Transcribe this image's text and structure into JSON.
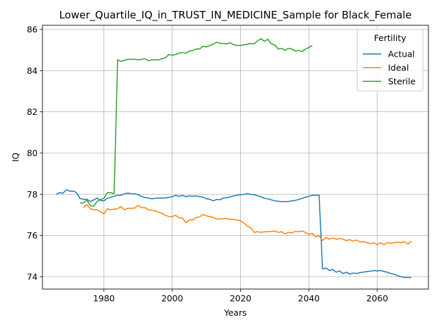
{
  "chart_data": {
    "type": "line",
    "title": "Lower_Quartile_IQ_in_TRUST_IN_MEDICINE_Sample for Black_Female",
    "xlabel": "Years",
    "ylabel": "IQ",
    "xlim": [
      1962,
      2075
    ],
    "ylim": [
      73.4,
      86.2
    ],
    "xticks": [
      1980,
      2000,
      2020,
      2040,
      2060
    ],
    "yticks": [
      74,
      76,
      78,
      80,
      82,
      84,
      86
    ],
    "grid": true,
    "legend": {
      "title": "Fertility",
      "position": "top-right"
    },
    "series": [
      {
        "name": "Actual",
        "color": "#1f77b4",
        "points": [
          [
            1966,
            78.0
          ],
          [
            1967,
            78.08
          ],
          [
            1968,
            78.05
          ],
          [
            1969,
            78.22
          ],
          [
            1970,
            78.15
          ],
          [
            1971,
            78.16
          ],
          [
            1972,
            78.08
          ],
          [
            1973,
            77.8
          ],
          [
            1974,
            77.75
          ],
          [
            1975,
            77.76
          ],
          [
            1976,
            77.65
          ],
          [
            1977,
            77.72
          ],
          [
            1978,
            77.82
          ],
          [
            1979,
            77.7
          ],
          [
            1980,
            77.68
          ],
          [
            1981,
            77.8
          ],
          [
            1982,
            77.85
          ],
          [
            1983,
            77.9
          ],
          [
            1984,
            77.95
          ],
          [
            1985,
            77.95
          ],
          [
            1986,
            78.02
          ],
          [
            1987,
            78.06
          ],
          [
            1988,
            78.02
          ],
          [
            1989,
            78.02
          ],
          [
            1990,
            77.98
          ],
          [
            1991,
            77.9
          ],
          [
            1992,
            77.84
          ],
          [
            1993,
            77.82
          ],
          [
            1994,
            77.78
          ],
          [
            1995,
            77.8
          ],
          [
            1996,
            77.82
          ],
          [
            1997,
            77.82
          ],
          [
            1998,
            77.82
          ],
          [
            1999,
            77.85
          ],
          [
            2000,
            77.88
          ],
          [
            2001,
            77.95
          ],
          [
            2002,
            77.9
          ],
          [
            2003,
            77.95
          ],
          [
            2004,
            77.88
          ],
          [
            2005,
            77.92
          ],
          [
            2006,
            77.9
          ],
          [
            2007,
            77.92
          ],
          [
            2008,
            77.88
          ],
          [
            2009,
            77.86
          ],
          [
            2010,
            77.78
          ],
          [
            2011,
            77.76
          ],
          [
            2012,
            77.68
          ],
          [
            2013,
            77.75
          ],
          [
            2014,
            77.73
          ],
          [
            2015,
            77.82
          ],
          [
            2016,
            77.83
          ],
          [
            2017,
            77.88
          ],
          [
            2018,
            77.92
          ],
          [
            2019,
            77.95
          ],
          [
            2020,
            77.98
          ],
          [
            2021,
            77.99
          ],
          [
            2022,
            78.03
          ],
          [
            2023,
            77.99
          ],
          [
            2024,
            77.98
          ],
          [
            2025,
            77.92
          ],
          [
            2026,
            77.88
          ],
          [
            2027,
            77.8
          ],
          [
            2028,
            77.78
          ],
          [
            2029,
            77.73
          ],
          [
            2030,
            77.68
          ],
          [
            2031,
            77.66
          ],
          [
            2032,
            77.64
          ],
          [
            2033,
            77.64
          ],
          [
            2034,
            77.65
          ],
          [
            2035,
            77.68
          ],
          [
            2036,
            77.7
          ],
          [
            2037,
            77.75
          ],
          [
            2038,
            77.8
          ],
          [
            2039,
            77.86
          ],
          [
            2040,
            77.9
          ],
          [
            2041,
            77.95
          ],
          [
            2042,
            77.95
          ],
          [
            2043,
            77.95
          ],
          [
            2044,
            74.38
          ],
          [
            2045,
            74.42
          ],
          [
            2046,
            74.3
          ],
          [
            2047,
            74.35
          ],
          [
            2048,
            74.22
          ],
          [
            2049,
            74.28
          ],
          [
            2050,
            74.15
          ],
          [
            2051,
            74.22
          ],
          [
            2052,
            74.12
          ],
          [
            2053,
            74.18
          ],
          [
            2054,
            74.15
          ],
          [
            2055,
            74.2
          ],
          [
            2056,
            74.22
          ],
          [
            2057,
            74.25
          ],
          [
            2058,
            74.26
          ],
          [
            2059,
            74.3
          ],
          [
            2060,
            74.28
          ],
          [
            2061,
            74.3
          ],
          [
            2062,
            74.25
          ],
          [
            2063,
            74.22
          ],
          [
            2064,
            74.15
          ],
          [
            2065,
            74.12
          ],
          [
            2066,
            74.05
          ],
          [
            2067,
            74.0
          ],
          [
            2068,
            73.96
          ],
          [
            2069,
            73.97
          ],
          [
            2070,
            73.95
          ]
        ]
      },
      {
        "name": "Ideal",
        "color": "#ff7f0e",
        "points": [
          [
            1974,
            77.35
          ],
          [
            1975,
            77.5
          ],
          [
            1976,
            77.3
          ],
          [
            1977,
            77.25
          ],
          [
            1978,
            77.25
          ],
          [
            1979,
            77.15
          ],
          [
            1980,
            77.05
          ],
          [
            1981,
            77.3
          ],
          [
            1982,
            77.25
          ],
          [
            1983,
            77.28
          ],
          [
            1984,
            77.3
          ],
          [
            1985,
            77.4
          ],
          [
            1986,
            77.25
          ],
          [
            1987,
            77.32
          ],
          [
            1988,
            77.32
          ],
          [
            1989,
            77.33
          ],
          [
            1990,
            77.46
          ],
          [
            1991,
            77.35
          ],
          [
            1992,
            77.35
          ],
          [
            1993,
            77.25
          ],
          [
            1994,
            77.22
          ],
          [
            1995,
            77.2
          ],
          [
            1996,
            77.12
          ],
          [
            1997,
            77.08
          ],
          [
            1998,
            76.98
          ],
          [
            1999,
            76.92
          ],
          [
            2000,
            76.92
          ],
          [
            2001,
            76.98
          ],
          [
            2002,
            76.85
          ],
          [
            2003,
            76.85
          ],
          [
            2004,
            76.62
          ],
          [
            2005,
            76.75
          ],
          [
            2006,
            76.75
          ],
          [
            2007,
            76.88
          ],
          [
            2008,
            76.9
          ],
          [
            2009,
            77.02
          ],
          [
            2010,
            76.95
          ],
          [
            2011,
            76.92
          ],
          [
            2012,
            76.88
          ],
          [
            2013,
            76.8
          ],
          [
            2014,
            76.8
          ],
          [
            2015,
            76.82
          ],
          [
            2016,
            76.82
          ],
          [
            2017,
            76.78
          ],
          [
            2018,
            76.78
          ],
          [
            2019,
            76.75
          ],
          [
            2020,
            76.72
          ],
          [
            2021,
            76.6
          ],
          [
            2022,
            76.45
          ],
          [
            2023,
            76.38
          ],
          [
            2024,
            76.15
          ],
          [
            2025,
            76.18
          ],
          [
            2026,
            76.15
          ],
          [
            2027,
            76.18
          ],
          [
            2028,
            76.18
          ],
          [
            2029,
            76.2
          ],
          [
            2030,
            76.22
          ],
          [
            2031,
            76.15
          ],
          [
            2032,
            76.18
          ],
          [
            2033,
            76.08
          ],
          [
            2034,
            76.15
          ],
          [
            2035,
            76.12
          ],
          [
            2036,
            76.2
          ],
          [
            2037,
            76.18
          ],
          [
            2038,
            76.22
          ],
          [
            2039,
            76.15
          ],
          [
            2040,
            76.05
          ],
          [
            2041,
            76.1
          ],
          [
            2042,
            75.92
          ],
          [
            2043,
            76.0
          ],
          [
            2044,
            75.75
          ],
          [
            2045,
            75.9
          ],
          [
            2046,
            75.82
          ],
          [
            2047,
            75.88
          ],
          [
            2048,
            75.82
          ],
          [
            2049,
            75.85
          ],
          [
            2050,
            75.82
          ],
          [
            2051,
            75.75
          ],
          [
            2052,
            75.8
          ],
          [
            2053,
            75.72
          ],
          [
            2054,
            75.78
          ],
          [
            2055,
            75.68
          ],
          [
            2056,
            75.7
          ],
          [
            2057,
            75.65
          ],
          [
            2058,
            75.6
          ],
          [
            2059,
            75.65
          ],
          [
            2060,
            75.55
          ],
          [
            2061,
            75.65
          ],
          [
            2062,
            75.55
          ],
          [
            2063,
            75.65
          ],
          [
            2064,
            75.62
          ],
          [
            2065,
            75.65
          ],
          [
            2066,
            75.68
          ],
          [
            2067,
            75.65
          ],
          [
            2068,
            75.7
          ],
          [
            2069,
            75.58
          ],
          [
            2070,
            75.72
          ]
        ]
      },
      {
        "name": "Sterile",
        "color": "#2ca02c",
        "points": [
          [
            1973,
            77.58
          ],
          [
            1974,
            77.58
          ],
          [
            1975,
            77.72
          ],
          [
            1976,
            77.45
          ],
          [
            1977,
            77.42
          ],
          [
            1978,
            77.65
          ],
          [
            1979,
            77.75
          ],
          [
            1980,
            77.8
          ],
          [
            1981,
            78.08
          ],
          [
            1982,
            78.08
          ],
          [
            1983,
            78.02
          ],
          [
            1984,
            84.52
          ],
          [
            1985,
            84.45
          ],
          [
            1986,
            84.5
          ],
          [
            1987,
            84.55
          ],
          [
            1988,
            84.55
          ],
          [
            1989,
            84.55
          ],
          [
            1990,
            84.52
          ],
          [
            1991,
            84.55
          ],
          [
            1992,
            84.58
          ],
          [
            1993,
            84.48
          ],
          [
            1994,
            84.52
          ],
          [
            1995,
            84.52
          ],
          [
            1996,
            84.52
          ],
          [
            1997,
            84.58
          ],
          [
            1998,
            84.62
          ],
          [
            1999,
            84.78
          ],
          [
            2000,
            84.75
          ],
          [
            2001,
            84.78
          ],
          [
            2002,
            84.85
          ],
          [
            2003,
            84.88
          ],
          [
            2004,
            84.85
          ],
          [
            2005,
            84.95
          ],
          [
            2006,
            84.98
          ],
          [
            2007,
            85.05
          ],
          [
            2008,
            85.05
          ],
          [
            2009,
            85.18
          ],
          [
            2010,
            85.15
          ],
          [
            2011,
            85.22
          ],
          [
            2012,
            85.28
          ],
          [
            2013,
            85.38
          ],
          [
            2014,
            85.32
          ],
          [
            2015,
            85.32
          ],
          [
            2016,
            85.3
          ],
          [
            2017,
            85.35
          ],
          [
            2018,
            85.25
          ],
          [
            2019,
            85.22
          ],
          [
            2020,
            85.22
          ],
          [
            2021,
            85.25
          ],
          [
            2022,
            85.28
          ],
          [
            2023,
            85.32
          ],
          [
            2024,
            85.3
          ],
          [
            2025,
            85.45
          ],
          [
            2026,
            85.55
          ],
          [
            2027,
            85.42
          ],
          [
            2028,
            85.52
          ],
          [
            2029,
            85.3
          ],
          [
            2030,
            85.25
          ],
          [
            2031,
            85.05
          ],
          [
            2032,
            85.08
          ],
          [
            2033,
            84.98
          ],
          [
            2034,
            85.08
          ],
          [
            2035,
            85.05
          ],
          [
            2036,
            84.95
          ],
          [
            2037,
            84.98
          ],
          [
            2038,
            84.92
          ],
          [
            2039,
            85.05
          ],
          [
            2040,
            85.12
          ],
          [
            2041,
            85.22
          ]
        ]
      }
    ]
  }
}
